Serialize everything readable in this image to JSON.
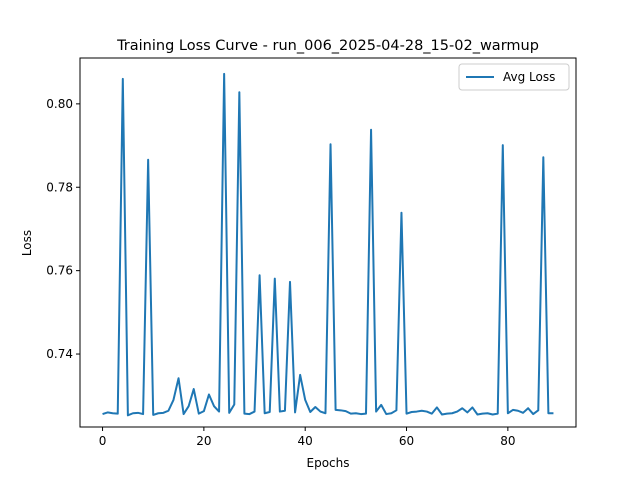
{
  "chart_data": {
    "type": "line",
    "title": "Training Loss Curve - run_006_2025-04-28_15-02_warmup",
    "xlabel": "Epochs",
    "ylabel": "Loss",
    "xlim": [
      -4.45,
      93.45
    ],
    "ylim": [
      0.7225,
      0.811
    ],
    "xticks": [
      0,
      20,
      40,
      60,
      80
    ],
    "yticks": [
      0.74,
      0.76,
      0.78,
      0.8
    ],
    "ytick_labels": [
      "0.74",
      "0.76",
      "0.78",
      "0.80"
    ],
    "grid": false,
    "legend_position": "top-right",
    "series": [
      {
        "name": "Avg Loss",
        "color": "#1f77b4",
        "x": [
          0,
          1,
          2,
          3,
          4,
          5,
          6,
          7,
          8,
          9,
          10,
          11,
          12,
          13,
          14,
          15,
          16,
          17,
          18,
          19,
          20,
          21,
          22,
          23,
          24,
          25,
          26,
          27,
          28,
          29,
          30,
          31,
          32,
          33,
          34,
          35,
          36,
          37,
          38,
          39,
          40,
          41,
          42,
          43,
          44,
          45,
          46,
          47,
          48,
          49,
          50,
          51,
          52,
          53,
          54,
          55,
          56,
          57,
          58,
          59,
          60,
          61,
          62,
          63,
          64,
          65,
          66,
          67,
          68,
          69,
          70,
          71,
          72,
          73,
          74,
          75,
          76,
          77,
          78,
          79,
          80,
          81,
          82,
          83,
          84,
          85,
          86,
          87,
          88,
          89
        ],
        "y": [
          0.7256,
          0.726,
          0.7258,
          0.7257,
          0.806,
          0.7253,
          0.7258,
          0.7259,
          0.7256,
          0.7866,
          0.7254,
          0.7258,
          0.7259,
          0.7264,
          0.729,
          0.7342,
          0.7256,
          0.7275,
          0.7316,
          0.7257,
          0.7263,
          0.7303,
          0.7275,
          0.7262,
          0.8072,
          0.7259,
          0.7279,
          0.8028,
          0.7257,
          0.7256,
          0.7262,
          0.7589,
          0.7258,
          0.7261,
          0.7581,
          0.7262,
          0.7264,
          0.7573,
          0.726,
          0.735,
          0.729,
          0.7261,
          0.7273,
          0.7262,
          0.7258,
          0.7903,
          0.7266,
          0.7265,
          0.7263,
          0.7257,
          0.7258,
          0.7256,
          0.7257,
          0.7938,
          0.7262,
          0.7278,
          0.7256,
          0.7258,
          0.7265,
          0.7739,
          0.7257,
          0.7261,
          0.7262,
          0.7264,
          0.7262,
          0.7257,
          0.7272,
          0.7255,
          0.7257,
          0.7258,
          0.7262,
          0.727,
          0.726,
          0.7272,
          0.7255,
          0.7257,
          0.7258,
          0.7255,
          0.7257,
          0.7901,
          0.7258,
          0.7266,
          0.7264,
          0.7259,
          0.727,
          0.7256,
          0.7265,
          0.7872,
          0.7258,
          0.7258
        ]
      }
    ]
  }
}
